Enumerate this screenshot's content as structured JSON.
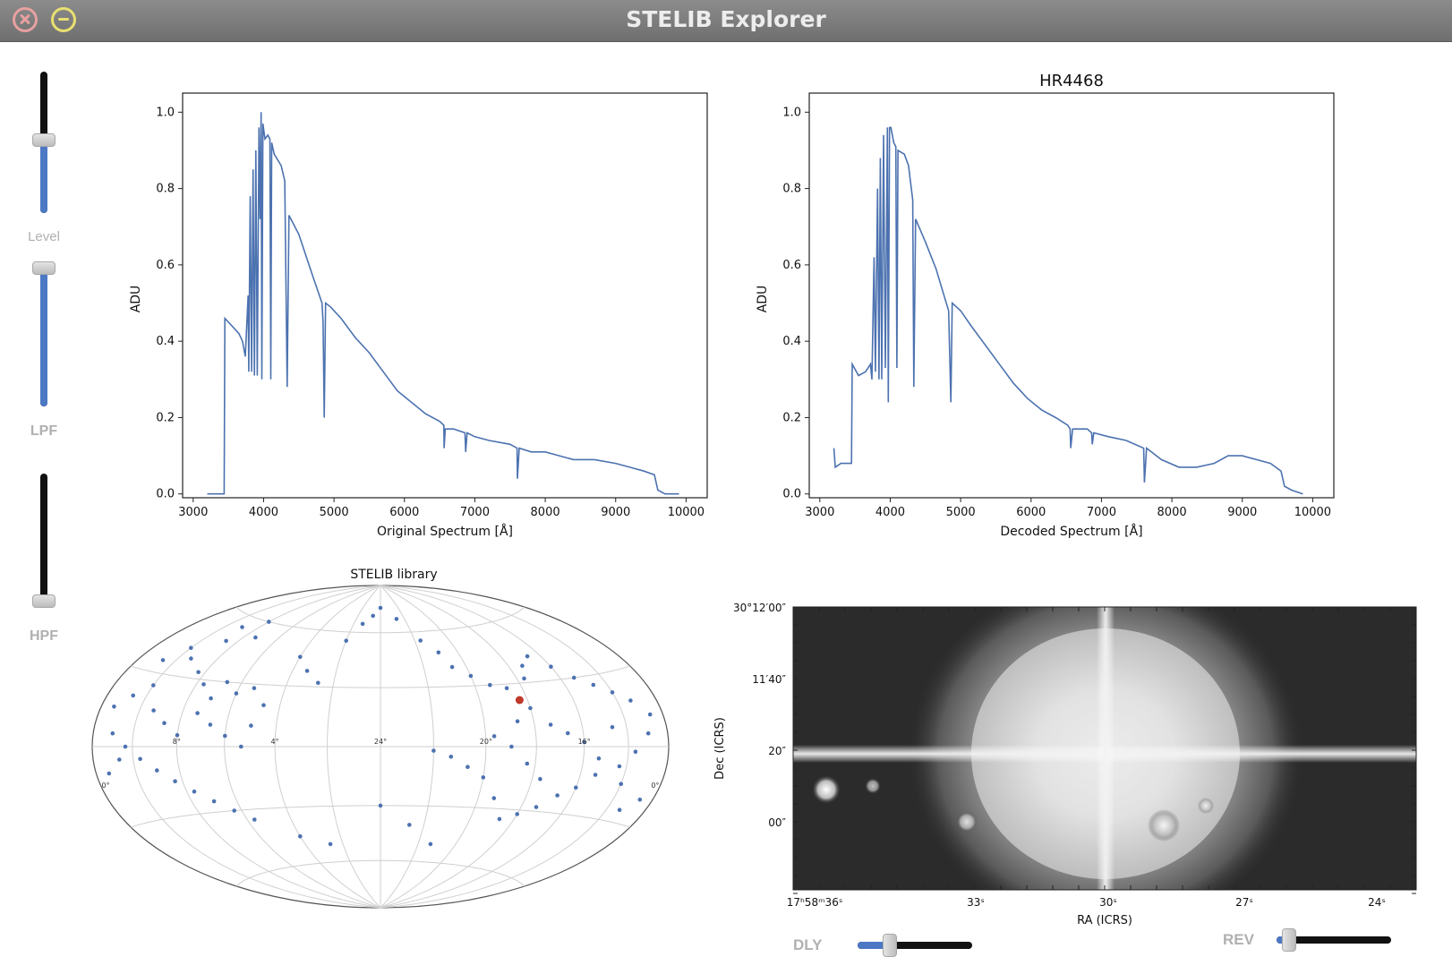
{
  "window": {
    "title": "STELIB Explorer"
  },
  "sliders": {
    "level": {
      "label": "Level",
      "value": 0.52
    },
    "lpf": {
      "label": "LPF",
      "value": 1.0
    },
    "hpf": {
      "label": "HPF",
      "value": 0.0
    },
    "dly": {
      "label": "DLY",
      "value": 0.25
    },
    "rev": {
      "label": "REV",
      "value": 0.05
    }
  },
  "colors": {
    "line": "#4c72b0",
    "highlight": "#c0392b"
  },
  "chart_data": [
    {
      "type": "line",
      "title": "",
      "xlabel": "Original Spectrum [Å]",
      "ylabel": "ADU",
      "xlim": [
        2850,
        10300
      ],
      "ylim": [
        -0.01,
        1.05
      ],
      "xticks": [
        3000,
        4000,
        5000,
        6000,
        7000,
        8000,
        9000,
        10000
      ],
      "yticks": [
        0.0,
        0.2,
        0.4,
        0.6,
        0.8,
        1.0
      ],
      "ytick_labels": [
        "0.0",
        "0.2",
        "0.4",
        "0.6",
        "0.8",
        "1.0"
      ],
      "series": [
        {
          "points": [
            [
              3200,
              0.0
            ],
            [
              3440,
              0.0
            ],
            [
              3450,
              0.46
            ],
            [
              3550,
              0.44
            ],
            [
              3650,
              0.42
            ],
            [
              3700,
              0.4
            ],
            [
              3740,
              0.36
            ],
            [
              3780,
              0.52
            ],
            [
              3790,
              0.32
            ],
            [
              3810,
              0.78
            ],
            [
              3830,
              0.32
            ],
            [
              3850,
              0.85
            ],
            [
              3870,
              0.31
            ],
            [
              3890,
              0.9
            ],
            [
              3910,
              0.31
            ],
            [
              3935,
              0.96
            ],
            [
              3950,
              0.72
            ],
            [
              3965,
              1.0
            ],
            [
              3975,
              0.3
            ],
            [
              3990,
              0.97
            ],
            [
              4020,
              0.93
            ],
            [
              4060,
              0.94
            ],
            [
              4090,
              0.93
            ],
            [
              4102,
              0.3
            ],
            [
              4115,
              0.92
            ],
            [
              4150,
              0.89
            ],
            [
              4250,
              0.86
            ],
            [
              4300,
              0.82
            ],
            [
              4335,
              0.28
            ],
            [
              4360,
              0.73
            ],
            [
              4500,
              0.68
            ],
            [
              4700,
              0.57
            ],
            [
              4830,
              0.5
            ],
            [
              4845,
              0.45
            ],
            [
              4861,
              0.2
            ],
            [
              4880,
              0.5
            ],
            [
              4950,
              0.49
            ],
            [
              5100,
              0.46
            ],
            [
              5300,
              0.41
            ],
            [
              5500,
              0.37
            ],
            [
              5700,
              0.32
            ],
            [
              5900,
              0.27
            ],
            [
              6100,
              0.24
            ],
            [
              6300,
              0.21
            ],
            [
              6500,
              0.19
            ],
            [
              6560,
              0.18
            ],
            [
              6563,
              0.12
            ],
            [
              6580,
              0.17
            ],
            [
              6700,
              0.17
            ],
            [
              6860,
              0.16
            ],
            [
              6870,
              0.11
            ],
            [
              6890,
              0.16
            ],
            [
              7000,
              0.15
            ],
            [
              7200,
              0.14
            ],
            [
              7500,
              0.13
            ],
            [
              7600,
              0.12
            ],
            [
              7605,
              0.04
            ],
            [
              7630,
              0.12
            ],
            [
              7800,
              0.11
            ],
            [
              8000,
              0.11
            ],
            [
              8200,
              0.1
            ],
            [
              8400,
              0.09
            ],
            [
              8700,
              0.09
            ],
            [
              9000,
              0.08
            ],
            [
              9200,
              0.07
            ],
            [
              9400,
              0.06
            ],
            [
              9550,
              0.05
            ],
            [
              9600,
              0.01
            ],
            [
              9700,
              0.0
            ],
            [
              9900,
              0.0
            ]
          ]
        }
      ]
    },
    {
      "type": "line",
      "title": "HR4468",
      "xlabel": "Decoded Spectrum [Å]",
      "ylabel": "ADU",
      "xlim": [
        2850,
        10300
      ],
      "ylim": [
        -0.01,
        1.05
      ],
      "xticks": [
        3000,
        4000,
        5000,
        6000,
        7000,
        8000,
        9000,
        10000
      ],
      "yticks": [
        0.0,
        0.2,
        0.4,
        0.6,
        0.8,
        1.0
      ],
      "ytick_labels": [
        "0.0",
        "0.2",
        "0.4",
        "0.6",
        "0.8",
        "1.0"
      ],
      "series": [
        {
          "points": [
            [
              3200,
              0.12
            ],
            [
              3220,
              0.07
            ],
            [
              3300,
              0.08
            ],
            [
              3450,
              0.08
            ],
            [
              3460,
              0.34
            ],
            [
              3550,
              0.31
            ],
            [
              3650,
              0.32
            ],
            [
              3720,
              0.34
            ],
            [
              3740,
              0.3
            ],
            [
              3770,
              0.62
            ],
            [
              3790,
              0.32
            ],
            [
              3820,
              0.8
            ],
            [
              3840,
              0.3
            ],
            [
              3860,
              0.88
            ],
            [
              3880,
              0.3
            ],
            [
              3905,
              0.94
            ],
            [
              3930,
              0.33
            ],
            [
              3960,
              0.96
            ],
            [
              3972,
              0.24
            ],
            [
              3990,
              0.96
            ],
            [
              4010,
              0.96
            ],
            [
              4050,
              0.92
            ],
            [
              4080,
              0.91
            ],
            [
              4095,
              0.33
            ],
            [
              4110,
              0.9
            ],
            [
              4200,
              0.89
            ],
            [
              4260,
              0.86
            ],
            [
              4320,
              0.77
            ],
            [
              4335,
              0.28
            ],
            [
              4360,
              0.72
            ],
            [
              4500,
              0.66
            ],
            [
              4650,
              0.59
            ],
            [
              4780,
              0.51
            ],
            [
              4830,
              0.48
            ],
            [
              4861,
              0.24
            ],
            [
              4880,
              0.5
            ],
            [
              5000,
              0.48
            ],
            [
              5150,
              0.44
            ],
            [
              5350,
              0.39
            ],
            [
              5550,
              0.34
            ],
            [
              5750,
              0.29
            ],
            [
              5950,
              0.25
            ],
            [
              6150,
              0.22
            ],
            [
              6350,
              0.2
            ],
            [
              6520,
              0.18
            ],
            [
              6555,
              0.17
            ],
            [
              6563,
              0.12
            ],
            [
              6590,
              0.17
            ],
            [
              6800,
              0.17
            ],
            [
              6860,
              0.16
            ],
            [
              6870,
              0.13
            ],
            [
              6890,
              0.16
            ],
            [
              7100,
              0.15
            ],
            [
              7350,
              0.14
            ],
            [
              7600,
              0.12
            ],
            [
              7610,
              0.03
            ],
            [
              7640,
              0.12
            ],
            [
              7850,
              0.09
            ],
            [
              8100,
              0.07
            ],
            [
              8350,
              0.07
            ],
            [
              8600,
              0.08
            ],
            [
              8800,
              0.1
            ],
            [
              9000,
              0.1
            ],
            [
              9200,
              0.09
            ],
            [
              9400,
              0.08
            ],
            [
              9550,
              0.06
            ],
            [
              9600,
              0.02
            ],
            [
              9700,
              0.01
            ],
            [
              9860,
              0.0
            ]
          ]
        }
      ]
    },
    {
      "type": "scatter",
      "title": "STELIB library",
      "grid": true,
      "meridian_labels": [
        {
          "text": "8°",
          "lon": 120,
          "lat": 0
        },
        {
          "text": "4°",
          "lon": 60,
          "lat": 0
        },
        {
          "text": "24°",
          "lon": 0,
          "lat": 0
        },
        {
          "text": "20°",
          "lon": -60,
          "lat": 0
        },
        {
          "text": "16°",
          "lon": -120,
          "lat": 0
        },
        {
          "text": "0°",
          "lon": 178,
          "lat": -16
        },
        {
          "text": "0°",
          "lon": -178,
          "lat": -16
        }
      ],
      "stars": [
        [
          120,
          60
        ],
        [
          135,
          55
        ],
        [
          110,
          52
        ],
        [
          130,
          48
        ],
        [
          150,
          42
        ],
        [
          140,
          38
        ],
        [
          160,
          35
        ],
        [
          125,
          33
        ],
        [
          100,
          30
        ],
        [
          80,
          28
        ],
        [
          60,
          45
        ],
        [
          50,
          38
        ],
        [
          40,
          32
        ],
        [
          30,
          55
        ],
        [
          20,
          65
        ],
        [
          10,
          70
        ],
        [
          0,
          75
        ],
        [
          -20,
          68
        ],
        [
          -35,
          55
        ],
        [
          -45,
          48
        ],
        [
          -50,
          40
        ],
        [
          -60,
          35
        ],
        [
          -70,
          30
        ],
        [
          -80,
          28
        ],
        [
          -95,
          32
        ],
        [
          -100,
          38
        ],
        [
          -110,
          42
        ],
        [
          -120,
          36
        ],
        [
          -130,
          30
        ],
        [
          -140,
          26
        ],
        [
          -150,
          22
        ],
        [
          -160,
          18
        ],
        [
          -170,
          12
        ],
        [
          -165,
          5
        ],
        [
          -155,
          -2
        ],
        [
          -145,
          -8
        ],
        [
          -130,
          -12
        ],
        [
          -120,
          -18
        ],
        [
          -110,
          -22
        ],
        [
          -100,
          -28
        ],
        [
          -90,
          -32
        ],
        [
          -80,
          -35
        ],
        [
          -70,
          -25
        ],
        [
          -60,
          -15
        ],
        [
          -50,
          -10
        ],
        [
          -40,
          -5
        ],
        [
          -30,
          -2
        ],
        [
          -80,
          12
        ],
        [
          -90,
          18
        ],
        [
          -100,
          10
        ],
        [
          -110,
          6
        ],
        [
          -120,
          2
        ],
        [
          -130,
          -5
        ],
        [
          -95,
          -15
        ],
        [
          -85,
          -8
        ],
        [
          -75,
          0
        ],
        [
          -65,
          5
        ],
        [
          -140,
          8
        ],
        [
          -150,
          -15
        ],
        [
          -160,
          -25
        ],
        [
          -170,
          -20
        ],
        [
          150,
          25
        ],
        [
          160,
          20
        ],
        [
          170,
          15
        ],
        [
          165,
          5
        ],
        [
          155,
          0
        ],
        [
          145,
          -5
        ],
        [
          135,
          -10
        ],
        [
          125,
          -15
        ],
        [
          115,
          -20
        ],
        [
          105,
          -25
        ],
        [
          95,
          -30
        ],
        [
          85,
          -35
        ],
        [
          110,
          15
        ],
        [
          100,
          10
        ],
        [
          90,
          5
        ],
        [
          80,
          0
        ],
        [
          120,
          5
        ],
        [
          130,
          10
        ],
        [
          140,
          15
        ],
        [
          60,
          -45
        ],
        [
          0,
          -30
        ],
        [
          -20,
          -40
        ],
        [
          40,
          -50
        ],
        [
          -40,
          -50
        ],
        [
          70,
          20
        ],
        [
          75,
          10
        ],
        [
          90,
          25
        ],
        [
          105,
          22
        ],
        [
          115,
          28
        ],
        [
          170,
          -10
        ],
        [
          160,
          -5
        ]
      ],
      "highlight": [
        -85,
        22
      ]
    },
    {
      "type": "image",
      "xlabel": "RA (ICRS)",
      "ylabel": "Dec (ICRS)",
      "xtick_labels": [
        "17ʰ58ᵐ36ˢ",
        "33ˢ",
        "30ˢ",
        "27ˢ",
        "24ˢ"
      ],
      "ytick_labels": [
        "30°12′00″",
        "11′40″",
        "20″",
        "00″"
      ]
    }
  ]
}
